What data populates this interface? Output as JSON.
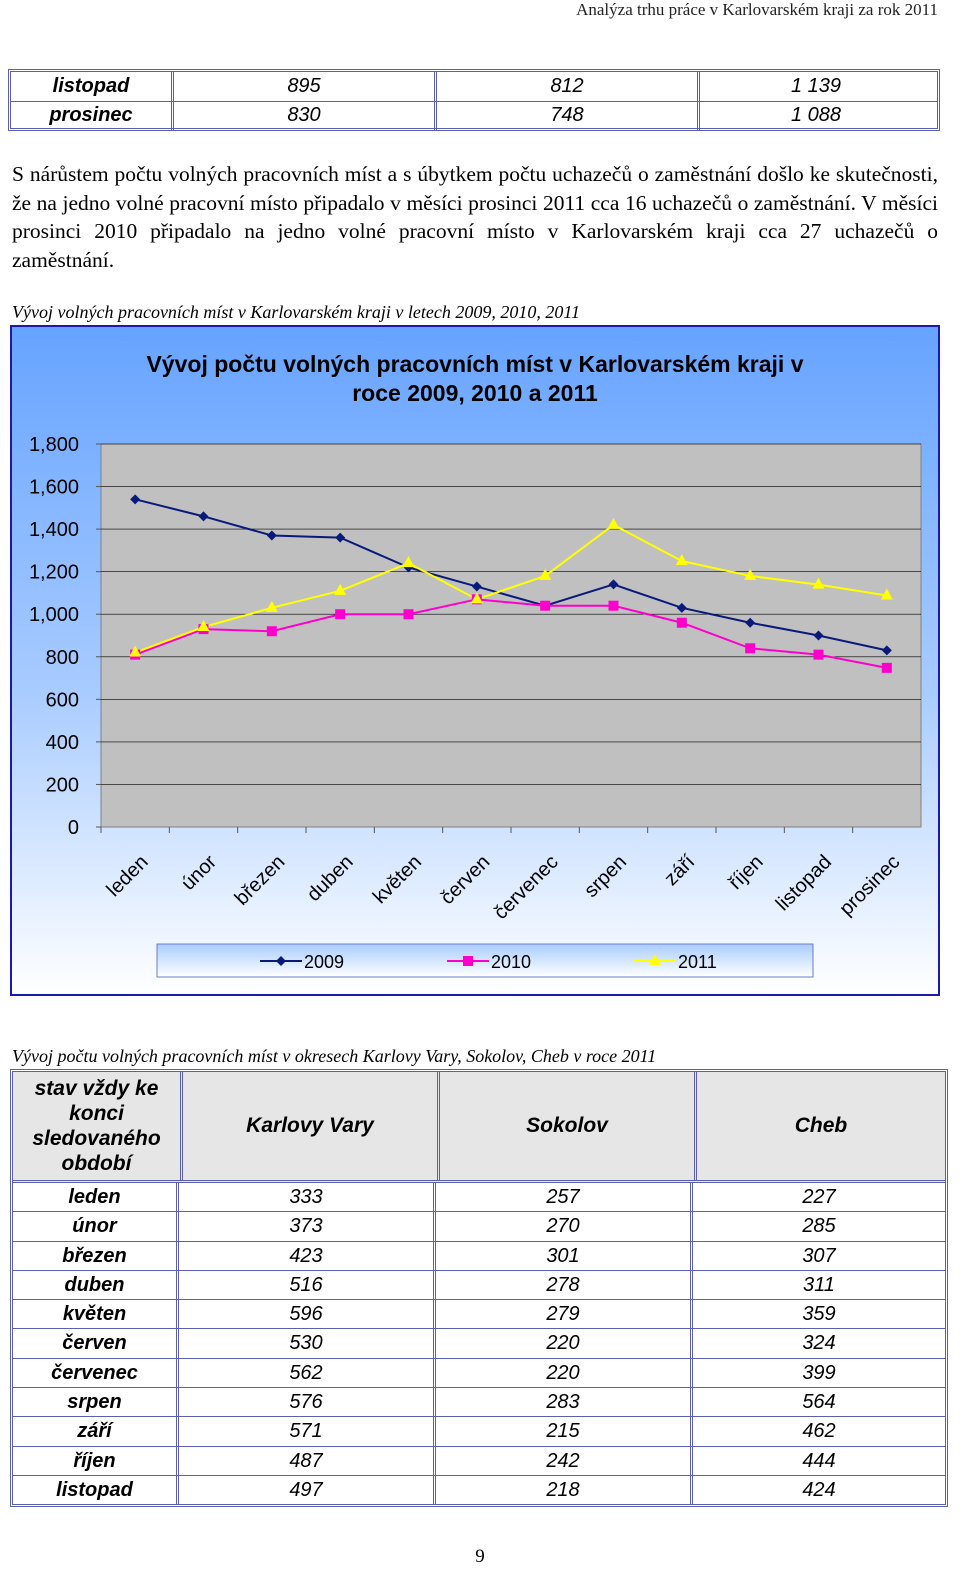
{
  "header": {
    "title": "Analýza trhu práce v Karlovarském kraji za rok 2011"
  },
  "table1": {
    "rows": [
      {
        "month": "listopad",
        "v1": "895",
        "v2": "812",
        "v3": "1 139"
      },
      {
        "month": "prosinec",
        "v1": "830",
        "v2": "748",
        "v3": "1 088"
      }
    ]
  },
  "paragraph": "S nárůstem počtu volných pracovních míst a s úbytkem počtu uchazečů o zaměstnání došlo ke skutečnosti, že na jedno volné pracovní místo připadalo v měsíci prosinci 2011 cca 16 uchazečů o zaměstnání. V měsíci prosinci 2010 připadalo na jedno volné pracovní místo v Karlovarském kraji cca 27 uchazečů o zaměstnání.",
  "caption1": "Vývoj volných pracovních míst v Karlovarském kraji v  letech 2009, 2010, 2011",
  "chart_data": {
    "type": "line",
    "title": "Vývoj počtu volných pracovních míst v Karlovarském kraji v roce 2009, 2010 a 2011",
    "categories": [
      "leden",
      "únor",
      "březen",
      "duben",
      "květen",
      "červen",
      "červenec",
      "srpen",
      "září",
      "říjen",
      "listopad",
      "prosinec"
    ],
    "yticks": [
      "1,800",
      "1,600",
      "1,400",
      "1,200",
      "1,000",
      "800",
      "600",
      "400",
      "200",
      "0"
    ],
    "ylim": [
      0,
      1800
    ],
    "grid": true,
    "legend": "bottom",
    "series": [
      {
        "name": "2009",
        "color": "#0a1a7a",
        "marker": "diamond",
        "values": [
          1540,
          1460,
          1370,
          1360,
          1220,
          1130,
          1040,
          1140,
          1030,
          960,
          900,
          830
        ]
      },
      {
        "name": "2010",
        "color": "#ff00cc",
        "marker": "square",
        "values": [
          810,
          930,
          920,
          1000,
          1000,
          1070,
          1040,
          1040,
          960,
          840,
          810,
          748
        ]
      },
      {
        "name": "2011",
        "color": "#ffff00",
        "marker": "triangle",
        "values": [
          820,
          940,
          1030,
          1110,
          1240,
          1070,
          1180,
          1420,
          1250,
          1180,
          1139,
          1088
        ]
      }
    ]
  },
  "caption2": "Vývoj počtu volných pracovních míst v okresech Karlovy Vary, Sokolov, Cheb v roce 2011",
  "table2": {
    "headers": [
      "stav vždy ke konci sledovaného období",
      "Karlovy Vary",
      "Sokolov",
      "Cheb"
    ],
    "rows": [
      [
        "leden",
        "333",
        "257",
        "227"
      ],
      [
        "únor",
        "373",
        "270",
        "285"
      ],
      [
        "březen",
        "423",
        "301",
        "307"
      ],
      [
        "duben",
        "516",
        "278",
        "311"
      ],
      [
        "květen",
        "596",
        "279",
        "359"
      ],
      [
        "červen",
        "530",
        "220",
        "324"
      ],
      [
        "červenec",
        "562",
        "220",
        "399"
      ],
      [
        "srpen",
        "576",
        "283",
        "564"
      ],
      [
        "září",
        "571",
        "215",
        "462"
      ],
      [
        "říjen",
        "487",
        "242",
        "444"
      ],
      [
        "listopad",
        "497",
        "218",
        "424"
      ]
    ]
  },
  "page_number": "9"
}
